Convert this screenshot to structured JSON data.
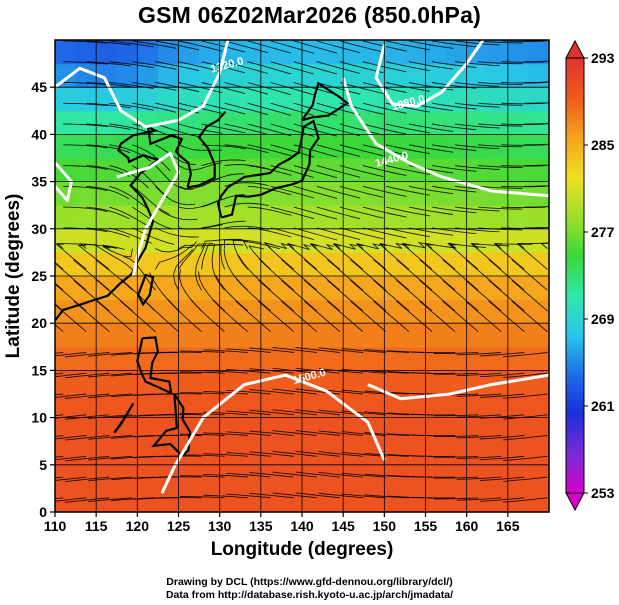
{
  "chart_data": {
    "type": "heatmap",
    "title": "GSM 06Z02Mar2026 (850.0hPa)",
    "xlabel": "Longitude (degrees)",
    "ylabel": "Latitude  (degrees)",
    "xlim": [
      110,
      170
    ],
    "ylim": [
      0,
      50
    ],
    "x_ticks": [
      110,
      115,
      120,
      125,
      130,
      135,
      140,
      145,
      150,
      155,
      160,
      165
    ],
    "y_ticks": [
      0,
      5,
      10,
      15,
      20,
      25,
      30,
      35,
      40,
      45
    ],
    "grid": true,
    "colorbar": {
      "placement": "right",
      "min": 253,
      "max": 293,
      "ticks": [
        253,
        261,
        269,
        277,
        285,
        293
      ],
      "colors": [
        "#d600c8",
        "#7a2bd6",
        "#1a2ed8",
        "#1f6fe8",
        "#29c7e8",
        "#2fe8a8",
        "#3ad83a",
        "#9ee02a",
        "#f0e020",
        "#f5a21c",
        "#f05a1c",
        "#e03232"
      ]
    },
    "temperature_field_by_latitude": {
      "latitude": [
        0,
        5,
        10,
        15,
        20,
        25,
        30,
        35,
        40,
        45,
        50
      ],
      "temperature_K": [
        290,
        290,
        290,
        289,
        287,
        285,
        279,
        276,
        273,
        268,
        264
      ]
    },
    "contours": [
      {
        "label": "1500.0",
        "approx_lon": 141,
        "approx_lat": 14
      },
      {
        "label": "1320.0",
        "approx_lon": 131,
        "approx_lat": 47
      },
      {
        "label": "1380.0",
        "approx_lon": 153,
        "approx_lat": 43
      },
      {
        "label": "1440.0",
        "approx_lon": 151,
        "approx_lat": 37
      }
    ]
  },
  "footer": {
    "line1": "Drawing by DCL (https://www.gfd-dennou.org/library/dcl/)",
    "line2": "Data from http://database.rish.kyoto-u.ac.jp/arch/jmadata/"
  }
}
